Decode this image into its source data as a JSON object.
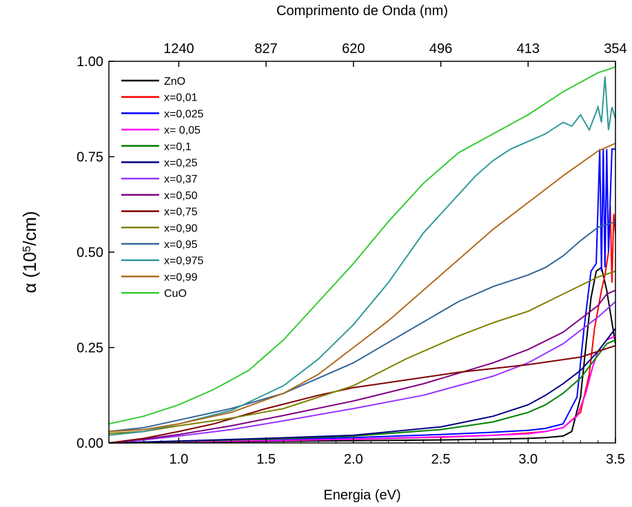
{
  "chart_data": {
    "type": "line",
    "xlabel": "Energia (eV)",
    "ylabel_main": "α (10",
    "ylabel_sup": "5",
    "ylabel_tail": "/cm)",
    "top_xlabel": "Comprimento de Onda (nm)",
    "xlim": [
      0.6,
      3.5
    ],
    "ylim": [
      0.0,
      1.0
    ],
    "x_ticks": [
      1.0,
      1.5,
      2.0,
      2.5,
      3.0,
      3.5
    ],
    "x_tick_labels": [
      "1.0",
      "1.5",
      "2.0",
      "2.5",
      "3.0",
      "3.5"
    ],
    "y_ticks": [
      0.0,
      0.25,
      0.5,
      0.75,
      1.0
    ],
    "y_tick_labels": [
      "0.00",
      "0.25",
      "0.50",
      "0.75",
      "1.00"
    ],
    "top_ticks": [
      {
        "energy": 1.0,
        "label": "1240"
      },
      {
        "energy": 1.5,
        "label": "827"
      },
      {
        "energy": 2.0,
        "label": "620"
      },
      {
        "energy": 2.5,
        "label": "496"
      },
      {
        "energy": 3.0,
        "label": "413"
      },
      {
        "energy": 3.5,
        "label": "354"
      }
    ],
    "legend_position": "top-left",
    "series": [
      {
        "name": "ZnO",
        "color": "#000000",
        "x": [
          0.6,
          1.0,
          1.5,
          2.0,
          2.5,
          2.8,
          3.0,
          3.1,
          3.2,
          3.25,
          3.3,
          3.33,
          3.36,
          3.39,
          3.42,
          3.45,
          3.5
        ],
        "y": [
          0.0,
          0.002,
          0.004,
          0.006,
          0.008,
          0.01,
          0.012,
          0.014,
          0.018,
          0.03,
          0.12,
          0.25,
          0.38,
          0.45,
          0.46,
          0.4,
          0.26
        ]
      },
      {
        "name": "x=0,01",
        "color": "#ff0000",
        "x": [
          0.6,
          1.0,
          1.5,
          2.0,
          2.5,
          2.8,
          3.0,
          3.1,
          3.2,
          3.3,
          3.35,
          3.38,
          3.42,
          3.44,
          3.46,
          3.47,
          3.48,
          3.49,
          3.5
        ],
        "y": [
          0.0,
          0.003,
          0.006,
          0.01,
          0.015,
          0.02,
          0.026,
          0.03,
          0.04,
          0.08,
          0.18,
          0.3,
          0.4,
          0.44,
          0.5,
          0.62,
          0.42,
          0.6,
          0.55
        ]
      },
      {
        "name": "x=0,025",
        "color": "#0000ff",
        "x": [
          0.6,
          1.0,
          1.5,
          2.0,
          2.5,
          2.8,
          3.0,
          3.1,
          3.2,
          3.28,
          3.32,
          3.36,
          3.39,
          3.41,
          3.42,
          3.43,
          3.44,
          3.45,
          3.46,
          3.48,
          3.5
        ],
        "y": [
          0.0,
          0.004,
          0.008,
          0.014,
          0.022,
          0.028,
          0.033,
          0.038,
          0.05,
          0.12,
          0.3,
          0.45,
          0.47,
          0.77,
          0.45,
          0.77,
          0.46,
          0.77,
          0.5,
          0.77,
          0.77
        ]
      },
      {
        "name": "x= 0,05",
        "color": "#ff00ff",
        "x": [
          0.6,
          1.0,
          1.5,
          2.0,
          2.5,
          2.8,
          3.0,
          3.1,
          3.2,
          3.28,
          3.33,
          3.37,
          3.4,
          3.45,
          3.5
        ],
        "y": [
          0.0,
          0.003,
          0.006,
          0.01,
          0.016,
          0.02,
          0.024,
          0.03,
          0.04,
          0.07,
          0.13,
          0.2,
          0.24,
          0.27,
          0.28
        ]
      },
      {
        "name": "x=0,1",
        "color": "#008000",
        "x": [
          0.6,
          1.0,
          1.5,
          2.0,
          2.5,
          2.8,
          3.0,
          3.1,
          3.2,
          3.3,
          3.35,
          3.4,
          3.45,
          3.5
        ],
        "y": [
          0.0,
          0.004,
          0.01,
          0.018,
          0.035,
          0.055,
          0.08,
          0.1,
          0.13,
          0.17,
          0.2,
          0.23,
          0.26,
          0.27
        ]
      },
      {
        "name": "x=0,25",
        "color": "#000080",
        "x": [
          0.6,
          1.0,
          1.5,
          2.0,
          2.5,
          2.8,
          3.0,
          3.1,
          3.2,
          3.3,
          3.4,
          3.45,
          3.5
        ],
        "y": [
          0.0,
          0.005,
          0.012,
          0.02,
          0.042,
          0.07,
          0.1,
          0.125,
          0.155,
          0.19,
          0.24,
          0.27,
          0.3
        ]
      },
      {
        "name": "x=0,37",
        "color": "#9933ff",
        "x": [
          0.6,
          0.8,
          1.0,
          1.3,
          1.6,
          2.0,
          2.4,
          2.8,
          3.0,
          3.2,
          3.4,
          3.5
        ],
        "y": [
          0.0,
          0.008,
          0.018,
          0.035,
          0.058,
          0.09,
          0.125,
          0.175,
          0.21,
          0.26,
          0.33,
          0.37
        ]
      },
      {
        "name": "x=0,50",
        "color": "#800080",
        "x": [
          0.6,
          0.8,
          1.0,
          1.3,
          1.6,
          2.0,
          2.4,
          2.8,
          3.0,
          3.2,
          3.4,
          3.45,
          3.5
        ],
        "y": [
          0.0,
          0.01,
          0.022,
          0.045,
          0.072,
          0.11,
          0.155,
          0.21,
          0.245,
          0.29,
          0.36,
          0.39,
          0.4
        ]
      },
      {
        "name": "x=0,75",
        "color": "#800000",
        "x": [
          0.6,
          0.8,
          1.0,
          1.2,
          1.5,
          1.8,
          2.0,
          2.3,
          2.6,
          3.0,
          3.3,
          3.5
        ],
        "y": [
          0.0,
          0.012,
          0.03,
          0.05,
          0.09,
          0.125,
          0.145,
          0.165,
          0.185,
          0.205,
          0.225,
          0.255
        ]
      },
      {
        "name": "x=0,90",
        "color": "#808000",
        "x": [
          0.6,
          0.8,
          1.0,
          1.3,
          1.6,
          2.0,
          2.3,
          2.6,
          2.8,
          3.0,
          3.2,
          3.4,
          3.5
        ],
        "y": [
          0.025,
          0.03,
          0.045,
          0.065,
          0.09,
          0.15,
          0.22,
          0.28,
          0.315,
          0.345,
          0.39,
          0.435,
          0.45
        ]
      },
      {
        "name": "x=0,95",
        "color": "#336699",
        "x": [
          0.6,
          0.8,
          1.0,
          1.3,
          1.6,
          2.0,
          2.3,
          2.6,
          2.8,
          3.0,
          3.1,
          3.2,
          3.3,
          3.4,
          3.5
        ],
        "y": [
          0.03,
          0.04,
          0.06,
          0.09,
          0.13,
          0.21,
          0.29,
          0.37,
          0.41,
          0.44,
          0.46,
          0.49,
          0.53,
          0.565,
          0.58
        ]
      },
      {
        "name": "x=0,975",
        "color": "#339999",
        "x": [
          0.6,
          0.8,
          1.0,
          1.3,
          1.6,
          1.8,
          2.0,
          2.2,
          2.4,
          2.6,
          2.7,
          2.8,
          2.9,
          3.0,
          3.1,
          3.2,
          3.25,
          3.3,
          3.35,
          3.4,
          3.42,
          3.44,
          3.46,
          3.48,
          3.5
        ],
        "y": [
          0.02,
          0.03,
          0.05,
          0.085,
          0.15,
          0.22,
          0.31,
          0.42,
          0.55,
          0.65,
          0.7,
          0.74,
          0.77,
          0.79,
          0.81,
          0.84,
          0.83,
          0.86,
          0.82,
          0.88,
          0.84,
          0.96,
          0.82,
          0.88,
          0.85
        ]
      },
      {
        "name": "x=0,99",
        "color": "#b06a1c",
        "x": [
          0.6,
          0.8,
          1.0,
          1.3,
          1.6,
          1.8,
          2.0,
          2.2,
          2.4,
          2.6,
          2.8,
          3.0,
          3.2,
          3.4,
          3.5
        ],
        "y": [
          0.03,
          0.035,
          0.05,
          0.08,
          0.13,
          0.18,
          0.25,
          0.32,
          0.4,
          0.48,
          0.56,
          0.63,
          0.7,
          0.765,
          0.785
        ]
      },
      {
        "name": "CuO",
        "color": "#33cc33",
        "x": [
          0.6,
          0.8,
          1.0,
          1.2,
          1.4,
          1.6,
          1.8,
          2.0,
          2.2,
          2.4,
          2.6,
          2.8,
          3.0,
          3.2,
          3.4,
          3.5
        ],
        "y": [
          0.05,
          0.07,
          0.1,
          0.14,
          0.19,
          0.27,
          0.37,
          0.47,
          0.58,
          0.68,
          0.76,
          0.81,
          0.86,
          0.92,
          0.97,
          0.985
        ]
      }
    ]
  }
}
